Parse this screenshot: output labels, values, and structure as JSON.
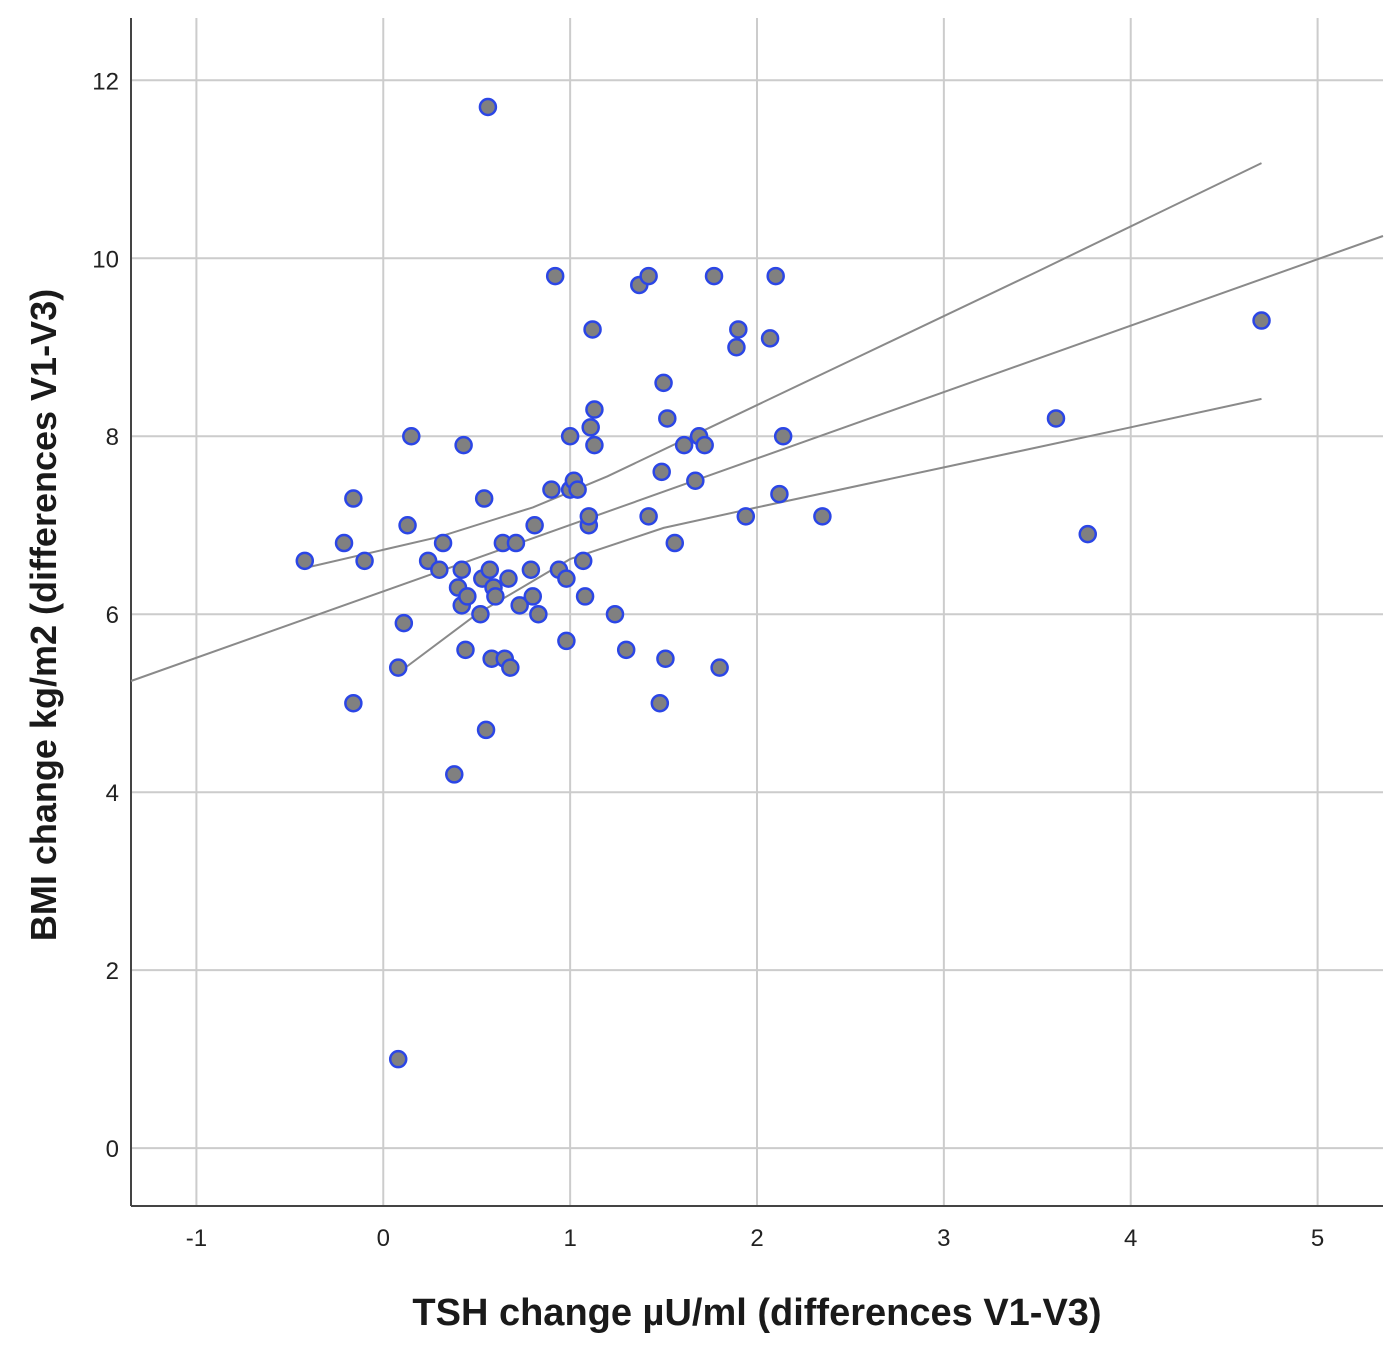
{
  "chart_data": {
    "type": "scatter",
    "title": "",
    "xlabel": "TSH change µU/ml (differences V1-V3)",
    "ylabel": "BMI change kg/m2 (differences V1-V3)",
    "xlim": [
      -1.35,
      5.35
    ],
    "ylim": [
      -0.65,
      12.7
    ],
    "xticks": [
      -1,
      0,
      1,
      2,
      3,
      4,
      5
    ],
    "yticks": [
      0,
      2,
      4,
      6,
      8,
      10,
      12
    ],
    "xtick_labels": [
      "-1",
      "0",
      "1",
      "2",
      "3",
      "4",
      "5"
    ],
    "ytick_labels": [
      "0",
      "2",
      "4",
      "6",
      "8",
      "10",
      "12"
    ],
    "grid": true,
    "marker_fill": "#808080",
    "marker_edge": "#2b46e6",
    "line_color": "#8a8a8a",
    "grid_color": "#cccccc",
    "points": [
      {
        "x": -0.42,
        "y": 6.6
      },
      {
        "x": -0.21,
        "y": 6.8
      },
      {
        "x": -0.16,
        "y": 7.3
      },
      {
        "x": -0.16,
        "y": 5.0
      },
      {
        "x": -0.1,
        "y": 6.6
      },
      {
        "x": 0.08,
        "y": 5.4
      },
      {
        "x": 0.08,
        "y": 1.0
      },
      {
        "x": 0.11,
        "y": 5.9
      },
      {
        "x": 0.13,
        "y": 7.0
      },
      {
        "x": 0.15,
        "y": 8.0
      },
      {
        "x": 0.24,
        "y": 6.6
      },
      {
        "x": 0.3,
        "y": 6.5
      },
      {
        "x": 0.32,
        "y": 6.8
      },
      {
        "x": 0.38,
        "y": 4.2
      },
      {
        "x": 0.4,
        "y": 6.3
      },
      {
        "x": 0.42,
        "y": 6.1
      },
      {
        "x": 0.42,
        "y": 6.5
      },
      {
        "x": 0.43,
        "y": 7.9
      },
      {
        "x": 0.44,
        "y": 5.6
      },
      {
        "x": 0.45,
        "y": 6.2
      },
      {
        "x": 0.52,
        "y": 6.0
      },
      {
        "x": 0.53,
        "y": 6.4
      },
      {
        "x": 0.54,
        "y": 7.3
      },
      {
        "x": 0.55,
        "y": 4.7
      },
      {
        "x": 0.56,
        "y": 11.7
      },
      {
        "x": 0.57,
        "y": 6.5
      },
      {
        "x": 0.58,
        "y": 5.5
      },
      {
        "x": 0.59,
        "y": 6.3
      },
      {
        "x": 0.6,
        "y": 6.2
      },
      {
        "x": 0.64,
        "y": 6.8
      },
      {
        "x": 0.65,
        "y": 5.5
      },
      {
        "x": 0.67,
        "y": 6.4
      },
      {
        "x": 0.68,
        "y": 5.4
      },
      {
        "x": 0.71,
        "y": 6.8
      },
      {
        "x": 0.73,
        "y": 6.1
      },
      {
        "x": 0.79,
        "y": 6.5
      },
      {
        "x": 0.8,
        "y": 6.2
      },
      {
        "x": 0.81,
        "y": 7.0
      },
      {
        "x": 0.83,
        "y": 6.0
      },
      {
        "x": 0.9,
        "y": 7.4
      },
      {
        "x": 0.92,
        "y": 9.8
      },
      {
        "x": 0.94,
        "y": 6.5
      },
      {
        "x": 0.98,
        "y": 5.7
      },
      {
        "x": 0.98,
        "y": 6.4
      },
      {
        "x": 1.0,
        "y": 8.0
      },
      {
        "x": 1.0,
        "y": 7.4
      },
      {
        "x": 1.02,
        "y": 7.5
      },
      {
        "x": 1.04,
        "y": 7.4
      },
      {
        "x": 1.07,
        "y": 6.6
      },
      {
        "x": 1.08,
        "y": 6.2
      },
      {
        "x": 1.1,
        "y": 7.0
      },
      {
        "x": 1.1,
        "y": 7.1
      },
      {
        "x": 1.11,
        "y": 8.1
      },
      {
        "x": 1.12,
        "y": 9.2
      },
      {
        "x": 1.13,
        "y": 8.3
      },
      {
        "x": 1.13,
        "y": 7.9
      },
      {
        "x": 1.24,
        "y": 6.0
      },
      {
        "x": 1.3,
        "y": 5.6
      },
      {
        "x": 1.37,
        "y": 9.7
      },
      {
        "x": 1.42,
        "y": 9.8
      },
      {
        "x": 1.42,
        "y": 7.1
      },
      {
        "x": 1.48,
        "y": 5.0
      },
      {
        "x": 1.49,
        "y": 7.6
      },
      {
        "x": 1.5,
        "y": 8.6
      },
      {
        "x": 1.51,
        "y": 5.5
      },
      {
        "x": 1.52,
        "y": 8.2
      },
      {
        "x": 1.56,
        "y": 6.8
      },
      {
        "x": 1.61,
        "y": 7.9
      },
      {
        "x": 1.67,
        "y": 7.5
      },
      {
        "x": 1.69,
        "y": 8.0
      },
      {
        "x": 1.72,
        "y": 7.9
      },
      {
        "x": 1.77,
        "y": 9.8
      },
      {
        "x": 1.8,
        "y": 5.4
      },
      {
        "x": 1.89,
        "y": 9.0
      },
      {
        "x": 1.9,
        "y": 9.2
      },
      {
        "x": 1.94,
        "y": 7.1
      },
      {
        "x": 2.07,
        "y": 9.1
      },
      {
        "x": 2.1,
        "y": 9.8
      },
      {
        "x": 2.12,
        "y": 7.35
      },
      {
        "x": 2.14,
        "y": 8.0
      },
      {
        "x": 2.35,
        "y": 7.1
      },
      {
        "x": 3.6,
        "y": 8.2
      },
      {
        "x": 3.77,
        "y": 6.9
      },
      {
        "x": 4.7,
        "y": 9.3
      }
    ],
    "regression_line": {
      "x": [
        -1.35,
        5.35
      ],
      "y": [
        5.25,
        10.25
      ]
    },
    "ci_upper": {
      "x": [
        -0.42,
        0.3,
        0.8,
        1.2,
        1.7,
        2.5,
        3.5,
        4.7
      ],
      "y": [
        6.52,
        6.87,
        7.2,
        7.55,
        8.05,
        8.85,
        9.85,
        11.07
      ]
    },
    "ci_lower": {
      "x": [
        0.08,
        0.5,
        1.0,
        1.5,
        2.0,
        3.0,
        4.0,
        4.7
      ],
      "y": [
        5.34,
        6.0,
        6.62,
        6.97,
        7.2,
        7.65,
        8.1,
        8.42
      ]
    }
  }
}
